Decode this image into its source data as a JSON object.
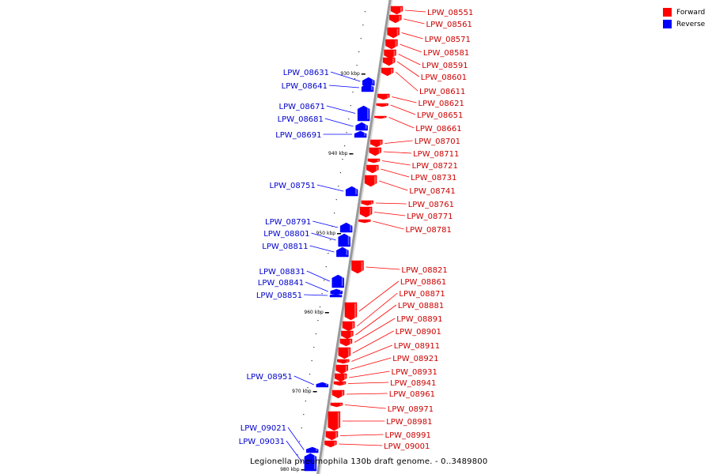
{
  "legend": [
    {
      "label": "Forward",
      "color": "#ff0000"
    },
    {
      "label": "Reverse",
      "color": "#0000ff"
    }
  ],
  "caption": "Legionella pneumophila 130b draft genome. - 0..3489800",
  "colors": {
    "forward": "#ff0000",
    "reverse": "#0000ff",
    "forward_text": "#cc0000",
    "reverse_text": "#0000cc",
    "backbone": "#999999"
  },
  "ticks": [
    {
      "label": "930 kbp"
    },
    {
      "label": "940 kbp"
    },
    {
      "label": "950 kbp"
    },
    {
      "label": "960 kbp"
    },
    {
      "label": "970 kbp"
    },
    {
      "label": "980 kbp"
    }
  ],
  "forward_genes": [
    "LPW_08551",
    "LPW_08561",
    "LPW_08571",
    "LPW_08581",
    "LPW_08591",
    "LPW_08601",
    "LPW_08611",
    "LPW_08621",
    "LPW_08651",
    "LPW_08661",
    "LPW_08701",
    "LPW_08711",
    "LPW_08721",
    "LPW_08731",
    "LPW_08741",
    "LPW_08761",
    "LPW_08771",
    "LPW_08781",
    "LPW_08821",
    "LPW_08861",
    "LPW_08871",
    "LPW_08881",
    "LPW_08891",
    "LPW_08901",
    "LPW_08911",
    "LPW_08921",
    "LPW_08931",
    "LPW_08941",
    "LPW_08961",
    "LPW_08971",
    "LPW_08981",
    "LPW_08991",
    "LPW_09001"
  ],
  "reverse_genes": [
    "LPW_08631",
    "LPW_08641",
    "LPW_08671",
    "LPW_08681",
    "LPW_08691",
    "LPW_08751",
    "LPW_08791",
    "LPW_08801",
    "LPW_08811",
    "LPW_08831",
    "LPW_08841",
    "LPW_08851",
    "LPW_08951",
    "LPW_09021",
    "LPW_09031"
  ]
}
